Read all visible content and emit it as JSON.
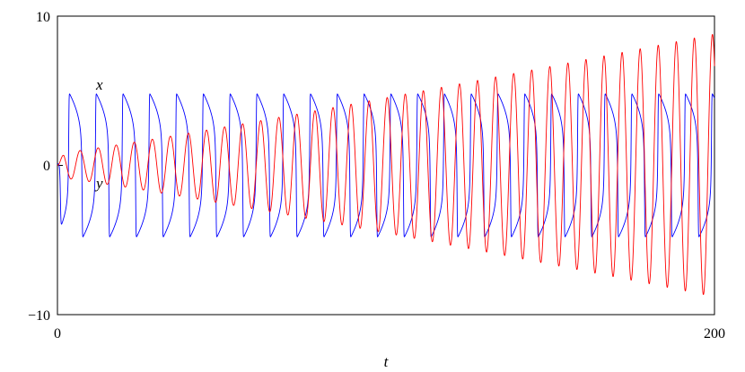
{
  "chart_data": {
    "type": "line",
    "title": "",
    "xlabel": "t",
    "ylabel": "",
    "xlim": [
      0,
      200
    ],
    "ylim": [
      -10,
      10
    ],
    "x_ticks": [
      "0",
      "200"
    ],
    "y_ticks": [
      "10",
      "0",
      "−10"
    ],
    "y_tick_values": [
      10,
      0,
      -10
    ],
    "x_tick_values": [
      0,
      200
    ],
    "grid": false,
    "legend": "none",
    "series": [
      {
        "name": "x",
        "color": "#0000ff",
        "description_values": {
          "amplitude_min": -4.7,
          "amplitude_max": 4.7,
          "period": 11,
          "first_peak": 3.9
        }
      },
      {
        "name": "y",
        "color": "#ff0000",
        "description_values": {
          "amplitude_start": 0.8,
          "amplitude_end": 8.8,
          "period": 5.5
        }
      }
    ]
  }
}
